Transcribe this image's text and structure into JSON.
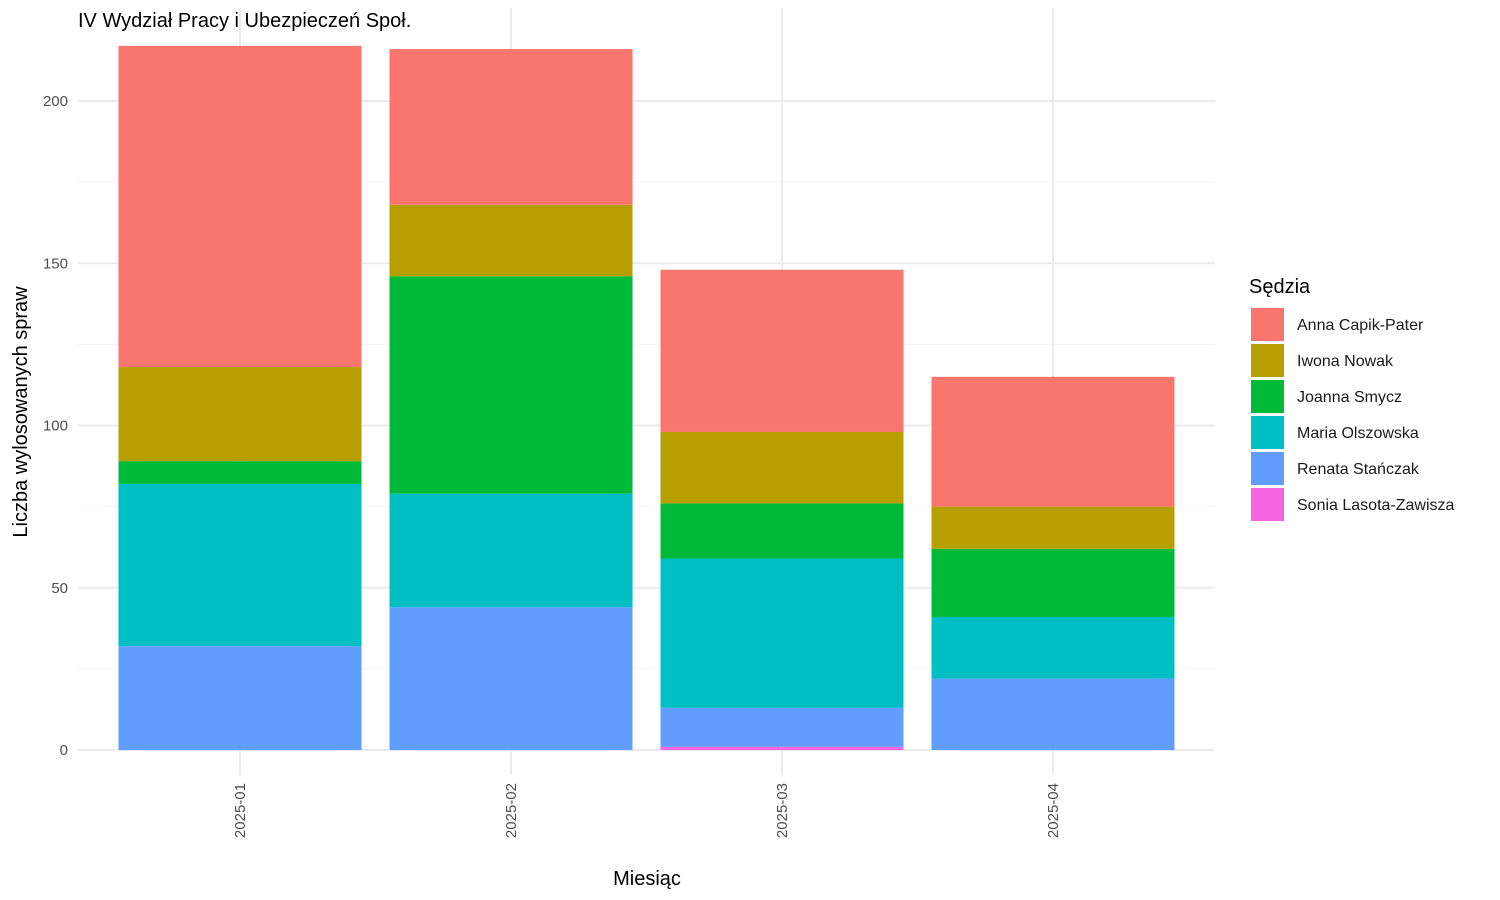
{
  "chart_data": {
    "type": "bar",
    "stacked": true,
    "title": "IV Wydział Pracy i Ubezpieczeń Społ.",
    "xlabel": "Miesiąc",
    "ylabel": "Liczba wylosowanych spraw",
    "categories": [
      "2025-01",
      "2025-02",
      "2025-03",
      "2025-04"
    ],
    "ylim": [
      0,
      220
    ],
    "yticks": [
      0,
      50,
      100,
      150,
      200
    ],
    "grid": true,
    "legend": {
      "title": "Sędzia",
      "position": "right"
    },
    "series": [
      {
        "name": "Sonia Lasota-Zawisza",
        "color": "#F564E3",
        "values": [
          0,
          0,
          1,
          0
        ]
      },
      {
        "name": "Renata Stańczak",
        "color": "#619CFF",
        "values": [
          32,
          44,
          12,
          22
        ]
      },
      {
        "name": "Maria Olszowska",
        "color": "#00BFC4",
        "values": [
          50,
          35,
          46,
          19
        ]
      },
      {
        "name": "Joanna Smycz",
        "color": "#00BA38",
        "values": [
          7,
          67,
          17,
          21
        ]
      },
      {
        "name": "Iwona Nowak",
        "color": "#B79F00",
        "values": [
          29,
          22,
          22,
          13
        ]
      },
      {
        "name": "Anna Capik-Pater",
        "color": "#F8766D",
        "values": [
          99,
          48,
          50,
          40
        ]
      }
    ]
  }
}
